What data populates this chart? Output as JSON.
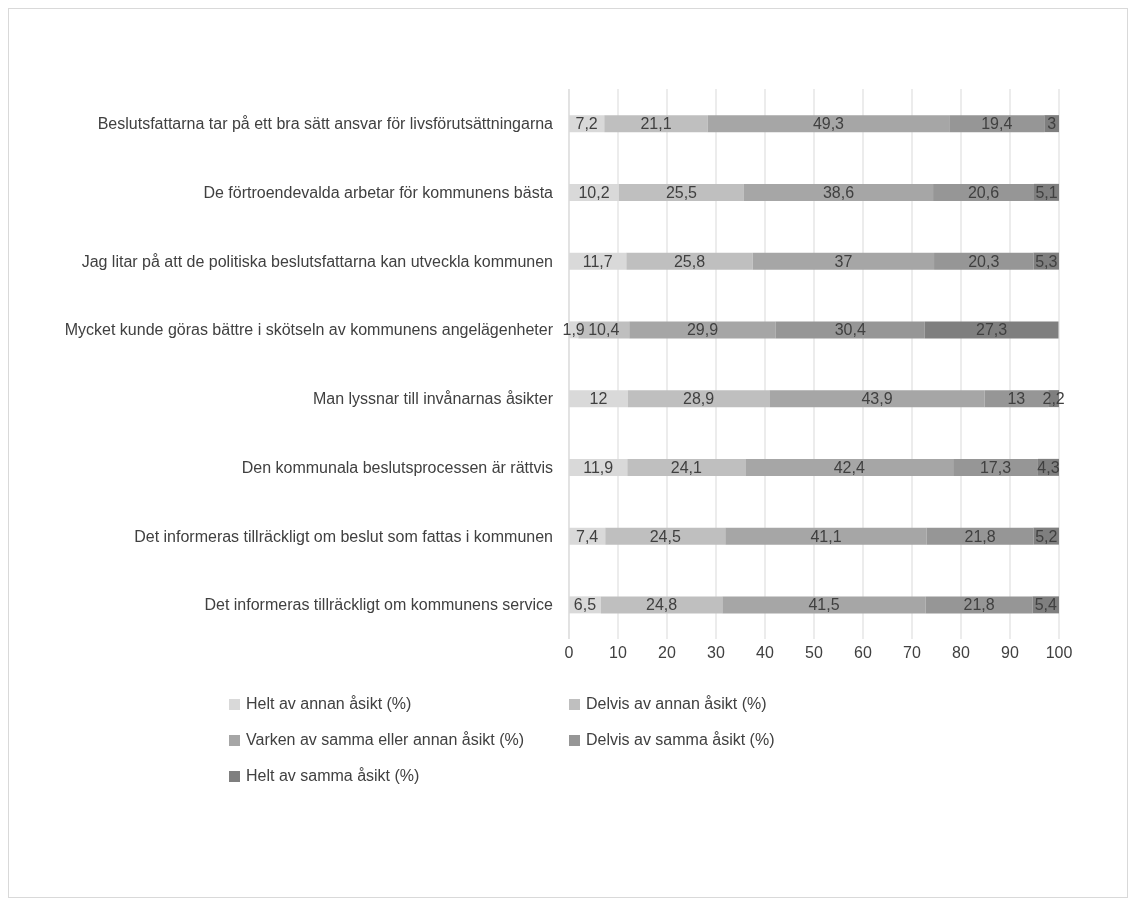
{
  "chart_data": {
    "type": "bar",
    "orientation": "horizontal",
    "stacked": true,
    "categories": [
      "Beslutsfattarna tar på ett bra sätt ansvar för livsförutsättningarna",
      "De förtroendevalda arbetar för kommunens bästa",
      "Jag litar på att de politiska beslutsfattarna kan utveckla kommunen",
      "Mycket kunde göras bättre i skötseln av kommunens angelägenheter",
      "Man lyssnar till invånarnas åsikter",
      "Den kommunala beslutsprocessen är rättvis",
      "Det informeras tillräckligt om beslut som fattas i kommunen",
      "Det informeras tillräckligt om kommunens service"
    ],
    "series": [
      {
        "name": "Helt av annan åsikt (%)",
        "color": "#d9d9d9",
        "values": [
          7.2,
          10.2,
          11.7,
          1.9,
          12,
          11.9,
          7.4,
          6.5
        ],
        "value_labels": [
          "7,2",
          "10,2",
          "11,7",
          "1,9",
          "12",
          "11,9",
          "7,4",
          "6,5"
        ]
      },
      {
        "name": "Delvis av annan åsikt (%)",
        "color": "#bfbfbf",
        "values": [
          21.1,
          25.5,
          25.8,
          10.4,
          28.9,
          24.1,
          24.5,
          24.8
        ],
        "value_labels": [
          "21,1",
          "25,5",
          "25,8",
          "10,4",
          "28,9",
          "24,1",
          "24,5",
          "24,8"
        ]
      },
      {
        "name": "Varken av samma eller annan åsikt (%)",
        "color": "#a6a6a6",
        "values": [
          49.3,
          38.6,
          37,
          29.9,
          43.9,
          42.4,
          41.1,
          41.5
        ],
        "value_labels": [
          "49,3",
          "38,6",
          "37",
          "29,9",
          "43,9",
          "42,4",
          "41,1",
          "41,5"
        ]
      },
      {
        "name": "Delvis av samma åsikt (%)",
        "color": "#969696",
        "values": [
          19.4,
          20.6,
          20.3,
          30.4,
          13,
          17.3,
          21.8,
          21.8
        ],
        "value_labels": [
          "19,4",
          "20,6",
          "20,3",
          "30,4",
          "13",
          "17,3",
          "21,8",
          "21,8"
        ]
      },
      {
        "name": "Helt av samma åsikt (%)",
        "color": "#7f7f7f",
        "values": [
          3,
          5.1,
          5.3,
          27.3,
          2.2,
          4.3,
          5.2,
          5.4
        ],
        "value_labels": [
          "3",
          "5,1",
          "5,3",
          "27,3",
          "2,2",
          "4,3",
          "5,2",
          "5,4"
        ]
      }
    ],
    "xlim": [
      0,
      100
    ],
    "xticks": [
      0,
      10,
      20,
      30,
      40,
      50,
      60,
      70,
      80,
      90,
      100
    ],
    "grid": "x",
    "legend": "bottom"
  }
}
